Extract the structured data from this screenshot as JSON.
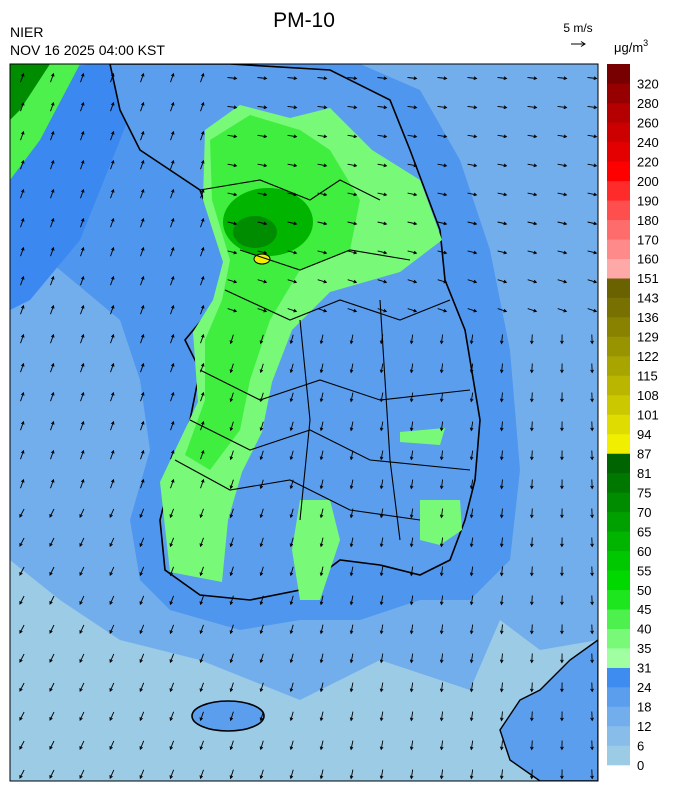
{
  "header": {
    "title": "PM-10",
    "agency": "NIER",
    "timestamp": "NOV 16 2025 04:00 KST",
    "vector_scale": "5 m/s"
  },
  "colorbar": {
    "unit": "μg/m",
    "unit_exponent": "3",
    "levels": [
      0,
      6,
      12,
      18,
      24,
      31,
      35,
      40,
      45,
      50,
      55,
      60,
      65,
      70,
      75,
      81,
      87,
      94,
      101,
      108,
      115,
      122,
      129,
      136,
      143,
      151,
      160,
      170,
      180,
      190,
      200,
      220,
      240,
      260,
      280,
      320
    ],
    "colors": [
      "#9ccbe6",
      "#88bdea",
      "#73aeec",
      "#5c9eee",
      "#3f8cf0",
      "#a0ffa0",
      "#78fa78",
      "#4ef04e",
      "#1ee61e",
      "#00d800",
      "#00c800",
      "#00b400",
      "#00a000",
      "#008c00",
      "#007800",
      "#006400",
      "#f2ee00",
      "#dedc00",
      "#ccc800",
      "#bab600",
      "#a8a400",
      "#989400",
      "#888200",
      "#787000",
      "#6a6200",
      "#ffa8a8",
      "#ff8a8a",
      "#ff6c6c",
      "#ff4e4e",
      "#ff2a2a",
      "#ff0000",
      "#e40000",
      "#cc0000",
      "#b40000",
      "#960000",
      "#780000"
    ]
  }
}
